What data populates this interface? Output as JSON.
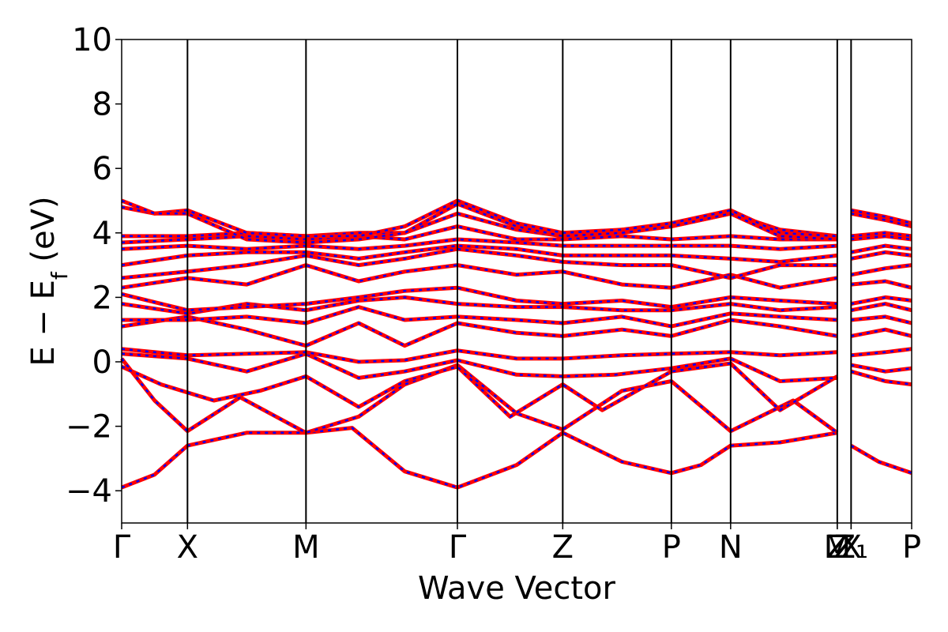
{
  "chart_data": {
    "type": "line",
    "xlabel": "Wave Vector",
    "ylabel": "E − E_f (eV)",
    "ylabel_main": "E − E",
    "ylabel_sub": "f",
    "ylabel_unit": " (eV)",
    "ylim": [
      -5,
      10
    ],
    "yticks": [
      -4,
      -2,
      0,
      2,
      4,
      6,
      8,
      10
    ],
    "ytick_labels": [
      "−4",
      "−2",
      "0",
      "2",
      "4",
      "6",
      "8",
      "10"
    ],
    "xlim": [
      0,
      12
    ],
    "kpoints": [
      {
        "label": "Γ",
        "x": 0.0
      },
      {
        "label": "X",
        "x": 1.0
      },
      {
        "label": "M",
        "x": 2.8
      },
      {
        "label": "Γ",
        "x": 5.1
      },
      {
        "label": "Z",
        "x": 6.7
      },
      {
        "label": "P",
        "x": 8.35
      },
      {
        "label": "N",
        "x": 9.25
      },
      {
        "label": "M",
        "x": 10.87
      },
      {
        "label": "Z",
        "x": 10.87
      },
      {
        "label": "Z₁",
        "x": 11.08
      },
      {
        "label": "X",
        "x": 11.08
      },
      {
        "label": "P",
        "x": 12.0
      }
    ],
    "grid": false,
    "colors": {
      "line": "#ff0000",
      "dash": "#0000ff"
    },
    "series": [
      {
        "values": [
          [
            0,
            -3.9
          ],
          [
            0.5,
            -3.5
          ],
          [
            1.0,
            -2.6
          ],
          [
            1.9,
            -2.2
          ],
          [
            2.8,
            -2.2
          ],
          [
            3.5,
            -2.05
          ],
          [
            4.3,
            -3.4
          ],
          [
            5.1,
            -3.9
          ],
          [
            6.0,
            -3.2
          ],
          [
            6.7,
            -2.2
          ],
          [
            7.6,
            -3.1
          ],
          [
            8.35,
            -3.45
          ],
          [
            8.8,
            -3.2
          ],
          [
            9.25,
            -2.6
          ],
          [
            10.0,
            -2.5
          ],
          [
            10.87,
            -2.2
          ]
        ]
      },
      {
        "values": [
          [
            11.08,
            -2.6
          ],
          [
            11.5,
            -3.1
          ],
          [
            12.0,
            -3.45
          ]
        ]
      },
      {
        "values": [
          [
            0,
            0.1
          ],
          [
            0.5,
            -1.2
          ],
          [
            1.0,
            -2.15
          ],
          [
            1.8,
            -1.1
          ],
          [
            2.8,
            -2.2
          ],
          [
            3.6,
            -1.7
          ],
          [
            4.3,
            -0.7
          ],
          [
            5.1,
            -0.1
          ],
          [
            6.0,
            -1.6
          ],
          [
            6.7,
            -2.1
          ],
          [
            7.6,
            -0.9
          ],
          [
            8.35,
            -0.6
          ],
          [
            9.25,
            -2.15
          ],
          [
            10.2,
            -1.2
          ],
          [
            10.87,
            -2.2
          ]
        ]
      },
      {
        "values": [
          [
            0,
            -0.15
          ],
          [
            0.6,
            -0.7
          ],
          [
            1.4,
            -1.2
          ],
          [
            2.1,
            -0.9
          ],
          [
            2.8,
            -0.45
          ],
          [
            3.6,
            -1.4
          ],
          [
            4.3,
            -0.6
          ],
          [
            5.1,
            -0.15
          ],
          [
            5.9,
            -1.7
          ],
          [
            6.7,
            -0.7
          ],
          [
            7.3,
            -1.5
          ],
          [
            8.35,
            -0.3
          ],
          [
            9.25,
            -0.05
          ],
          [
            10.0,
            -1.5
          ],
          [
            10.87,
            -0.45
          ]
        ]
      },
      {
        "values": [
          [
            11.08,
            -0.3
          ],
          [
            11.6,
            -0.6
          ],
          [
            12.0,
            -0.7
          ]
        ]
      },
      {
        "values": [
          [
            0,
            0.25
          ],
          [
            1.0,
            0.1
          ],
          [
            1.9,
            -0.3
          ],
          [
            2.8,
            0.25
          ],
          [
            3.6,
            -0.5
          ],
          [
            4.3,
            -0.3
          ],
          [
            5.1,
            0.05
          ],
          [
            6.0,
            -0.4
          ],
          [
            6.7,
            -0.45
          ],
          [
            7.5,
            -0.4
          ],
          [
            8.35,
            -0.2
          ],
          [
            9.25,
            0.1
          ],
          [
            10.0,
            -0.6
          ],
          [
            10.87,
            -0.5
          ]
        ]
      },
      {
        "values": [
          [
            11.08,
            -0.1
          ],
          [
            11.6,
            -0.3
          ],
          [
            12.0,
            -0.2
          ]
        ]
      },
      {
        "values": [
          [
            0,
            0.4
          ],
          [
            1.0,
            0.2
          ],
          [
            1.9,
            0.25
          ],
          [
            2.8,
            0.3
          ],
          [
            3.6,
            0.0
          ],
          [
            4.3,
            0.05
          ],
          [
            5.1,
            0.35
          ],
          [
            6.0,
            0.1
          ],
          [
            6.7,
            0.1
          ],
          [
            7.6,
            0.2
          ],
          [
            8.35,
            0.25
          ],
          [
            9.25,
            0.3
          ],
          [
            10.0,
            0.2
          ],
          [
            10.87,
            0.3
          ]
        ]
      },
      {
        "values": [
          [
            11.08,
            0.2
          ],
          [
            11.6,
            0.3
          ],
          [
            12.0,
            0.4
          ]
        ]
      },
      {
        "values": [
          [
            0,
            1.1
          ],
          [
            1.0,
            1.4
          ],
          [
            1.9,
            1.0
          ],
          [
            2.8,
            0.5
          ],
          [
            3.6,
            1.2
          ],
          [
            4.3,
            0.5
          ],
          [
            5.1,
            1.2
          ],
          [
            6.0,
            0.9
          ],
          [
            6.7,
            0.8
          ],
          [
            7.6,
            1.0
          ],
          [
            8.35,
            0.8
          ],
          [
            9.25,
            1.3
          ],
          [
            10.0,
            1.1
          ],
          [
            10.87,
            0.8
          ]
        ]
      },
      {
        "values": [
          [
            11.08,
            0.8
          ],
          [
            11.6,
            1.0
          ],
          [
            12.0,
            0.8
          ]
        ]
      },
      {
        "values": [
          [
            0,
            1.3
          ],
          [
            1.0,
            1.3
          ],
          [
            1.9,
            1.4
          ],
          [
            2.8,
            1.2
          ],
          [
            3.6,
            1.7
          ],
          [
            4.3,
            1.3
          ],
          [
            5.1,
            1.4
          ],
          [
            6.0,
            1.3
          ],
          [
            6.7,
            1.2
          ],
          [
            7.6,
            1.4
          ],
          [
            8.35,
            1.1
          ],
          [
            9.25,
            1.5
          ],
          [
            10.0,
            1.4
          ],
          [
            10.87,
            1.3
          ]
        ]
      },
      {
        "values": [
          [
            11.08,
            1.3
          ],
          [
            11.6,
            1.4
          ],
          [
            12.0,
            1.2
          ]
        ]
      },
      {
        "values": [
          [
            0,
            1.8
          ],
          [
            1.0,
            1.5
          ],
          [
            1.9,
            1.8
          ],
          [
            2.8,
            1.6
          ],
          [
            3.6,
            1.9
          ],
          [
            4.3,
            2.0
          ],
          [
            5.1,
            1.8
          ],
          [
            6.0,
            1.7
          ],
          [
            6.7,
            1.7
          ],
          [
            7.6,
            1.6
          ],
          [
            8.35,
            1.6
          ],
          [
            9.25,
            1.8
          ],
          [
            10.0,
            1.6
          ],
          [
            10.87,
            1.7
          ]
        ]
      },
      {
        "values": [
          [
            11.08,
            1.6
          ],
          [
            11.6,
            1.8
          ],
          [
            12.0,
            1.6
          ]
        ]
      },
      {
        "values": [
          [
            0,
            2.1
          ],
          [
            1.0,
            1.6
          ],
          [
            1.9,
            1.7
          ],
          [
            2.8,
            1.8
          ],
          [
            3.6,
            2.0
          ],
          [
            4.3,
            2.2
          ],
          [
            5.1,
            2.3
          ],
          [
            6.0,
            1.9
          ],
          [
            6.7,
            1.8
          ],
          [
            7.6,
            1.9
          ],
          [
            8.35,
            1.7
          ],
          [
            9.25,
            2.0
          ],
          [
            10.0,
            1.9
          ],
          [
            10.87,
            1.8
          ]
        ]
      },
      {
        "values": [
          [
            11.08,
            1.8
          ],
          [
            11.6,
            2.0
          ],
          [
            12.0,
            1.9
          ]
        ]
      },
      {
        "values": [
          [
            0,
            2.3
          ],
          [
            1.0,
            2.6
          ],
          [
            1.9,
            2.4
          ],
          [
            2.8,
            3.0
          ],
          [
            3.6,
            2.5
          ],
          [
            4.3,
            2.8
          ],
          [
            5.1,
            3.0
          ],
          [
            6.0,
            2.7
          ],
          [
            6.7,
            2.8
          ],
          [
            7.6,
            2.4
          ],
          [
            8.35,
            2.3
          ],
          [
            9.25,
            2.7
          ],
          [
            10.0,
            2.3
          ],
          [
            10.87,
            2.6
          ]
        ]
      },
      {
        "values": [
          [
            11.08,
            2.4
          ],
          [
            11.6,
            2.5
          ],
          [
            12.0,
            2.3
          ]
        ]
      },
      {
        "values": [
          [
            0,
            2.6
          ],
          [
            1.0,
            2.8
          ],
          [
            1.9,
            3.0
          ],
          [
            2.8,
            3.3
          ],
          [
            3.6,
            3.0
          ],
          [
            4.3,
            3.2
          ],
          [
            5.1,
            3.5
          ],
          [
            6.0,
            3.3
          ],
          [
            6.7,
            3.1
          ],
          [
            7.6,
            3.0
          ],
          [
            8.35,
            3.0
          ],
          [
            9.25,
            2.6
          ],
          [
            10.0,
            3.0
          ],
          [
            10.87,
            3.0
          ]
        ]
      },
      {
        "values": [
          [
            11.08,
            2.7
          ],
          [
            11.6,
            2.9
          ],
          [
            12.0,
            3.0
          ]
        ]
      },
      {
        "values": [
          [
            0,
            3.0
          ],
          [
            1.0,
            3.3
          ],
          [
            1.9,
            3.4
          ],
          [
            2.8,
            3.4
          ],
          [
            3.6,
            3.2
          ],
          [
            4.3,
            3.4
          ],
          [
            5.1,
            3.6
          ],
          [
            6.0,
            3.5
          ],
          [
            6.7,
            3.3
          ],
          [
            7.6,
            3.3
          ],
          [
            8.35,
            3.3
          ],
          [
            9.25,
            3.2
          ],
          [
            10.0,
            3.1
          ],
          [
            10.87,
            3.3
          ]
        ]
      },
      {
        "values": [
          [
            11.08,
            3.2
          ],
          [
            11.6,
            3.4
          ],
          [
            12.0,
            3.3
          ]
        ]
      },
      {
        "values": [
          [
            0,
            3.5
          ],
          [
            1.0,
            3.6
          ],
          [
            1.9,
            3.5
          ],
          [
            2.8,
            3.6
          ],
          [
            3.6,
            3.5
          ],
          [
            4.3,
            3.6
          ],
          [
            5.1,
            3.8
          ],
          [
            6.0,
            3.7
          ],
          [
            6.7,
            3.6
          ],
          [
            7.6,
            3.6
          ],
          [
            8.35,
            3.6
          ],
          [
            9.25,
            3.6
          ],
          [
            10.0,
            3.5
          ],
          [
            10.87,
            3.6
          ]
        ]
      },
      {
        "values": [
          [
            11.08,
            3.4
          ],
          [
            11.6,
            3.6
          ],
          [
            12.0,
            3.5
          ]
        ]
      },
      {
        "values": [
          [
            0,
            3.7
          ],
          [
            1.0,
            3.8
          ],
          [
            1.9,
            3.9
          ],
          [
            2.8,
            3.8
          ],
          [
            3.6,
            3.9
          ],
          [
            4.3,
            3.8
          ],
          [
            5.1,
            4.2
          ],
          [
            6.0,
            3.8
          ],
          [
            6.7,
            3.8
          ],
          [
            7.6,
            3.9
          ],
          [
            8.35,
            3.8
          ],
          [
            9.25,
            3.9
          ],
          [
            10.0,
            3.8
          ],
          [
            10.87,
            3.8
          ]
        ]
      },
      {
        "values": [
          [
            11.08,
            3.8
          ],
          [
            11.6,
            3.9
          ],
          [
            12.0,
            3.8
          ]
        ]
      },
      {
        "values": [
          [
            0,
            3.9
          ],
          [
            1.0,
            3.9
          ],
          [
            1.9,
            4.0
          ],
          [
            2.8,
            3.9
          ],
          [
            3.6,
            4.0
          ],
          [
            4.3,
            4.0
          ],
          [
            5.1,
            4.6
          ],
          [
            6.0,
            4.1
          ],
          [
            6.7,
            3.9
          ],
          [
            7.6,
            4.1
          ],
          [
            8.35,
            4.2
          ],
          [
            9.25,
            4.6
          ],
          [
            10.0,
            4.1
          ],
          [
            10.87,
            3.9
          ]
        ]
      },
      {
        "values": [
          [
            11.08,
            3.9
          ],
          [
            11.6,
            4.0
          ],
          [
            12.0,
            3.9
          ]
        ]
      },
      {
        "values": [
          [
            0,
            4.8
          ],
          [
            0.5,
            4.6
          ],
          [
            1.0,
            4.7
          ],
          [
            1.9,
            4.0
          ],
          [
            2.8,
            3.9
          ],
          [
            3.6,
            3.9
          ],
          [
            4.3,
            4.2
          ],
          [
            5.1,
            5.0
          ],
          [
            6.0,
            4.3
          ],
          [
            6.7,
            4.0
          ],
          [
            7.6,
            4.1
          ],
          [
            8.35,
            4.3
          ],
          [
            9.25,
            4.7
          ],
          [
            10.0,
            4.0
          ],
          [
            10.87,
            3.9
          ]
        ]
      },
      {
        "values": [
          [
            11.08,
            4.7
          ],
          [
            11.6,
            4.5
          ],
          [
            12.0,
            4.3
          ]
        ]
      },
      {
        "values": [
          [
            0,
            5.0
          ],
          [
            0.5,
            4.6
          ],
          [
            1.0,
            4.6
          ],
          [
            1.9,
            3.8
          ],
          [
            2.8,
            3.7
          ],
          [
            3.6,
            3.8
          ],
          [
            4.3,
            4.0
          ],
          [
            5.1,
            4.9
          ],
          [
            6.0,
            4.2
          ],
          [
            6.7,
            3.9
          ],
          [
            7.6,
            4.0
          ],
          [
            8.35,
            4.2
          ],
          [
            9.25,
            4.6
          ],
          [
            10.0,
            3.9
          ],
          [
            10.87,
            3.8
          ]
        ]
      },
      {
        "values": [
          [
            11.08,
            4.6
          ],
          [
            11.6,
            4.4
          ],
          [
            12.0,
            4.2
          ]
        ]
      }
    ]
  }
}
